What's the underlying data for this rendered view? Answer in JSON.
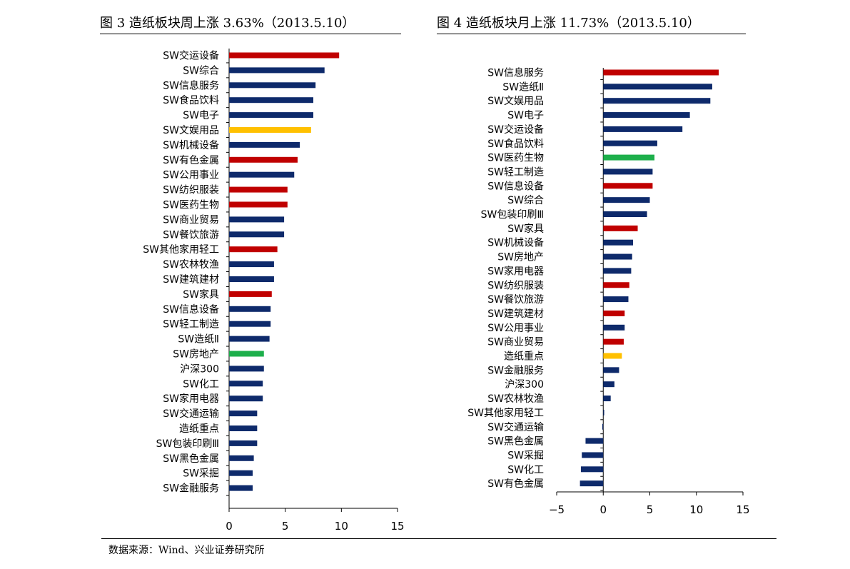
{
  "colors": {
    "navy": "#0e2a6b",
    "red": "#c00000",
    "yellow": "#ffc000",
    "green": "#1daf4b"
  },
  "source": "数据来源：Wind、兴业证券研究所",
  "chart_data": [
    {
      "type": "bar",
      "orientation": "horizontal",
      "title": "图 3  造纸板块周上涨 3.63%（2013.5.10）",
      "xlim": [
        0,
        15
      ],
      "xticks": [
        0,
        5,
        10,
        15
      ],
      "categories": [
        "SW交运设备",
        "SW综合",
        "SW信息服务",
        "SW食品饮料",
        "SW电子",
        "SW文娱用品",
        "SW机械设备",
        "SW有色金属",
        "SW公用事业",
        "SW纺织服装",
        "SW医药生物",
        "SW商业贸易",
        "SW餐饮旅游",
        "SW其他家用轻工",
        "SW农林牧渔",
        "SW建筑建材",
        "SW家具",
        "SW信息设备",
        "SW轻工制造",
        "SW造纸Ⅱ",
        "SW房地产",
        "沪深300",
        "SW化工",
        "SW家用电器",
        "SW交通运输",
        "造纸重点",
        "SW包装印刷Ⅲ",
        "SW黑色金属",
        "SW采掘",
        "SW金融服务"
      ],
      "values": [
        9.8,
        8.5,
        7.7,
        7.5,
        7.5,
        7.3,
        6.3,
        6.1,
        5.8,
        5.2,
        5.2,
        4.9,
        4.9,
        4.3,
        4.0,
        4.0,
        3.8,
        3.7,
        3.7,
        3.6,
        3.1,
        3.1,
        3.0,
        3.0,
        2.5,
        2.5,
        2.5,
        2.2,
        2.1,
        2.1
      ],
      "bar_colors": [
        "red",
        "navy",
        "navy",
        "navy",
        "navy",
        "yellow",
        "navy",
        "red",
        "navy",
        "red",
        "red",
        "navy",
        "navy",
        "red",
        "navy",
        "navy",
        "red",
        "navy",
        "navy",
        "navy",
        "green",
        "navy",
        "navy",
        "navy",
        "navy",
        "navy",
        "navy",
        "navy",
        "navy",
        "navy"
      ]
    },
    {
      "type": "bar",
      "orientation": "horizontal",
      "title": "图 4 造纸板块月上涨 11.73%（2013.5.10）",
      "xlim": [
        -5,
        15
      ],
      "xticks": [
        -5,
        0,
        5,
        10,
        15
      ],
      "xtick_labels": [
        "−5",
        "0",
        "5",
        "10",
        "15"
      ],
      "categories": [
        "SW信息服务",
        "SW造纸Ⅱ",
        "SW文娱用品",
        "SW电子",
        "SW交运设备",
        "SW食品饮料",
        "SW医药生物",
        "SW轻工制造",
        "SW信息设备",
        "SW综合",
        "SW包装印刷Ⅲ",
        "SW家具",
        "SW机械设备",
        "SW房地产",
        "SW家用电器",
        "SW纺织服装",
        "SW餐饮旅游",
        "SW建筑建材",
        "SW公用事业",
        "SW商业贸易",
        "造纸重点",
        "SW金融服务",
        "沪深300",
        "SW农林牧渔",
        "SW其他家用轻工",
        "SW交通运输",
        "SW黑色金属",
        "SW采掘",
        "SW化工",
        "SW有色金属"
      ],
      "values": [
        12.4,
        11.7,
        11.5,
        9.3,
        8.5,
        5.8,
        5.5,
        5.3,
        5.3,
        5.0,
        4.7,
        3.7,
        3.2,
        3.1,
        3.0,
        2.8,
        2.7,
        2.3,
        2.3,
        2.2,
        2.0,
        1.7,
        1.2,
        0.8,
        0.1,
        -0.1,
        -1.9,
        -2.3,
        -2.4,
        -2.5
      ],
      "bar_colors": [
        "red",
        "navy",
        "navy",
        "navy",
        "navy",
        "navy",
        "green",
        "navy",
        "red",
        "navy",
        "navy",
        "red",
        "navy",
        "navy",
        "navy",
        "red",
        "navy",
        "red",
        "navy",
        "red",
        "yellow",
        "navy",
        "navy",
        "navy",
        "navy",
        "navy",
        "navy",
        "navy",
        "navy",
        "navy"
      ]
    }
  ]
}
